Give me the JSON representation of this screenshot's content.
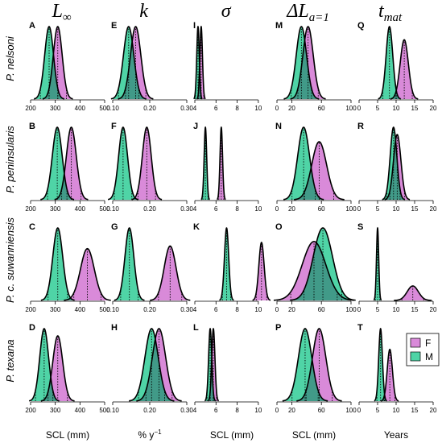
{
  "colors": {
    "female": "#D98AD9",
    "male": "#4FD4A6",
    "overlap": "#3E8F82",
    "line": "#000000"
  },
  "column_headers": [
    {
      "main": "L",
      "sub": "∞"
    },
    {
      "main": "k",
      "sub": ""
    },
    {
      "main": "σ",
      "sub": ""
    },
    {
      "main": "ΔL",
      "sub": "a=1"
    },
    {
      "main": "t",
      "sub": "mat"
    }
  ],
  "row_labels": [
    "P. nelsoni",
    "P. peninsularis",
    "P. c. suwanniensis",
    "P. texana"
  ],
  "panel_letters": [
    [
      "A",
      "E",
      "I",
      "M",
      "Q"
    ],
    [
      "B",
      "F",
      "J",
      "N",
      "R"
    ],
    [
      "C",
      "G",
      "K",
      "O",
      "S"
    ],
    [
      "D",
      "H",
      "L",
      "P",
      "T"
    ]
  ],
  "x_labels": [
    "SCL (mm)",
    "% y",
    "SCL (mm)",
    "SCL (mm)",
    "Years"
  ],
  "x_label_superscript": [
    "",
    "−1",
    "",
    "",
    ""
  ],
  "legend": [
    {
      "key": "F",
      "label": "F"
    },
    {
      "key": "M",
      "label": "M"
    }
  ],
  "chart_data": {
    "type": "density",
    "columns": [
      {
        "xlim": [
          200,
          500
        ],
        "ticks": [
          "200",
          "300",
          "400",
          "500"
        ],
        "tick_values": [
          200,
          300,
          400,
          500
        ]
      },
      {
        "xlim": [
          0.1,
          0.3
        ],
        "ticks": [
          "0.10",
          "0.20",
          "0.30"
        ],
        "tick_values": [
          0.1,
          0.2,
          0.3
        ]
      },
      {
        "xlim": [
          4,
          11
        ],
        "ticks": [
          "4",
          "6",
          "8",
          "10"
        ],
        "tick_values": [
          4,
          6,
          8,
          10
        ]
      },
      {
        "xlim": [
          0,
          100
        ],
        "ticks": [
          "0",
          "20",
          "60",
          "100"
        ],
        "tick_values": [
          0,
          20,
          60,
          100
        ]
      },
      {
        "xlim": [
          0,
          20
        ],
        "ticks": [
          "0",
          "5",
          "10",
          "15",
          "20"
        ],
        "tick_values": [
          0,
          5,
          10,
          15,
          20
        ]
      }
    ],
    "panels": [
      [
        {
          "F": {
            "mean": 310,
            "sd": 18
          },
          "M": {
            "mean": 275,
            "sd": 18
          }
        },
        {
          "F": {
            "mean": 0.162,
            "sd": 0.014
          },
          "M": {
            "mean": 0.143,
            "sd": 0.014
          }
        },
        {
          "F": {
            "mean": 4.6,
            "sd": 0.12
          },
          "M": {
            "mean": 4.3,
            "sd": 0.12
          }
        },
        {
          "F": {
            "mean": 42,
            "sd": 7
          },
          "M": {
            "mean": 33,
            "sd": 7
          }
        },
        {
          "F": {
            "mean": 12.2,
            "sd": 1.1
          },
          "M": {
            "mean": 8.2,
            "sd": 0.9
          }
        }
      ],
      [
        {
          "F": {
            "mean": 365,
            "sd": 20
          },
          "M": {
            "mean": 308,
            "sd": 20
          }
        },
        {
          "F": {
            "mean": 0.192,
            "sd": 0.012
          },
          "M": {
            "mean": 0.128,
            "sd": 0.012
          }
        },
        {
          "F": {
            "mean": 6.5,
            "sd": 0.12
          },
          "M": {
            "mean": 5.0,
            "sd": 0.12
          }
        },
        {
          "F": {
            "mean": 57,
            "sd": 10
          },
          "M": {
            "mean": 36,
            "sd": 8
          }
        },
        {
          "F": {
            "mean": 10.3,
            "sd": 1.0
          },
          "M": {
            "mean": 9.3,
            "sd": 0.9
          }
        }
      ],
      [
        {
          "F": {
            "mean": 430,
            "sd": 28
          },
          "M": {
            "mean": 310,
            "sd": 20
          }
        },
        {
          "F": {
            "mean": 0.255,
            "sd": 0.016
          },
          "M": {
            "mean": 0.145,
            "sd": 0.012
          }
        },
        {
          "F": {
            "mean": 10.3,
            "sd": 0.25
          },
          "M": {
            "mean": 7.0,
            "sd": 0.2
          }
        },
        {
          "F": {
            "mean": 50,
            "sd": 16
          },
          "M": {
            "mean": 62,
            "sd": 13
          }
        },
        {
          "F": {
            "mean": 14.5,
            "sd": 1.5
          },
          "M": {
            "mean": 5.0,
            "sd": 0.3
          }
        }
      ],
      [
        {
          "F": {
            "mean": 310,
            "sd": 20
          },
          "M": {
            "mean": 255,
            "sd": 18
          }
        },
        {
          "F": {
            "mean": 0.225,
            "sd": 0.018
          },
          "M": {
            "mean": 0.205,
            "sd": 0.018
          }
        },
        {
          "F": {
            "mean": 5.75,
            "sd": 0.15
          },
          "M": {
            "mean": 5.45,
            "sd": 0.15
          }
        },
        {
          "F": {
            "mean": 57,
            "sd": 9
          },
          "M": {
            "mean": 38,
            "sd": 9
          }
        },
        {
          "F": {
            "mean": 8.3,
            "sd": 0.7
          },
          "M": {
            "mean": 5.8,
            "sd": 0.5
          }
        }
      ]
    ]
  }
}
